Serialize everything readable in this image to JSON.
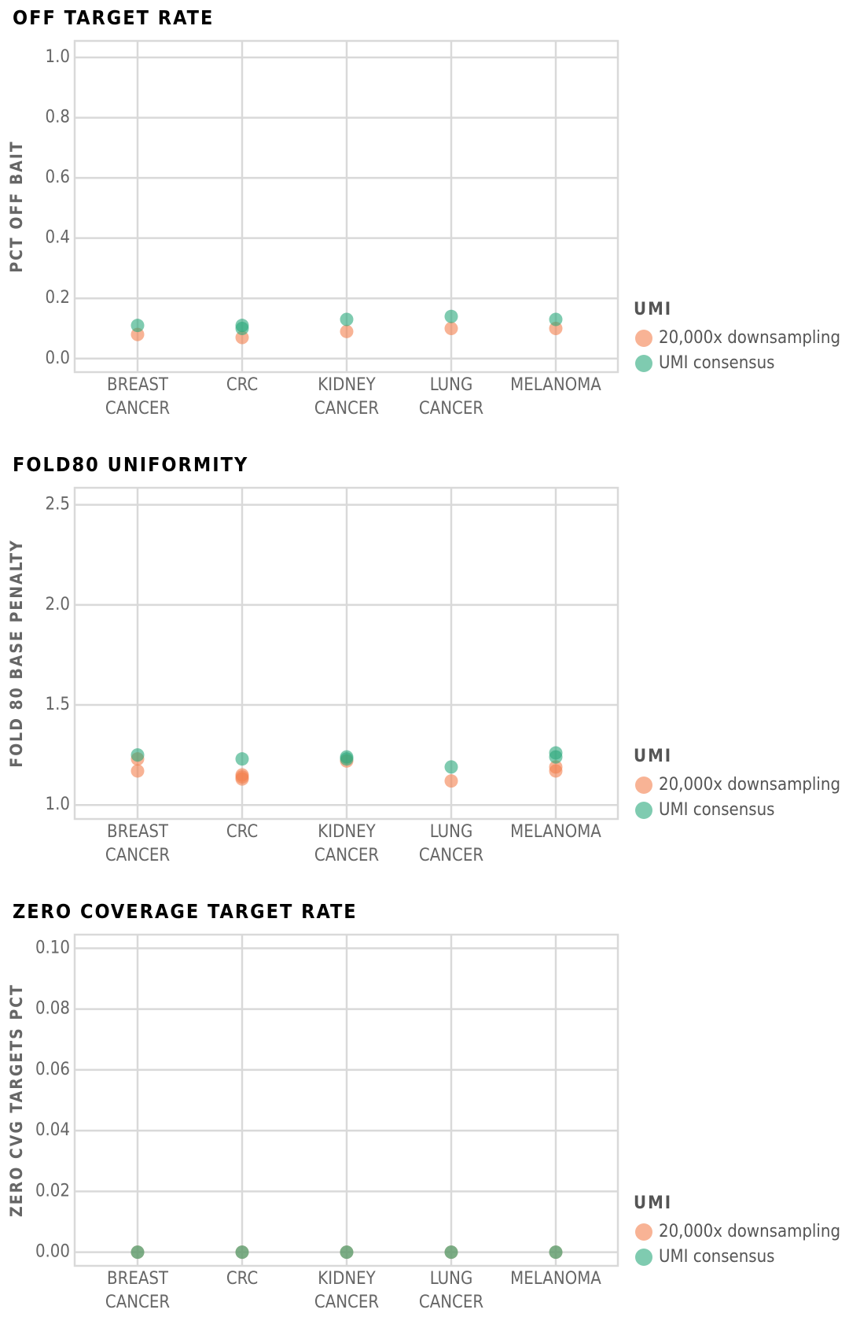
{
  "chart_data": [
    {
      "type": "scatter",
      "title": "OFF TARGET RATE",
      "ylabel": "PCT OFF BAIT",
      "categories": [
        "BREAST CANCER",
        "CRC",
        "KIDNEY CANCER",
        "LUNG CANCER",
        "MELANOMA"
      ],
      "legend_title": "UMI",
      "grid": true,
      "series": [
        {
          "name": "20,000x downsampling",
          "color": "#f4804f",
          "x": [
            "BREAST CANCER",
            "CRC",
            "KIDNEY CANCER",
            "LUNG CANCER",
            "MELANOMA"
          ],
          "values": [
            0.08,
            0.07,
            0.09,
            0.1,
            0.1
          ]
        },
        {
          "name": "UMI consensus",
          "color": "#2aa87c",
          "x": [
            "BREAST CANCER",
            "CRC",
            "CRC",
            "KIDNEY CANCER",
            "LUNG CANCER",
            "MELANOMA"
          ],
          "values": [
            0.11,
            0.11,
            0.1,
            0.13,
            0.14,
            0.13
          ]
        }
      ],
      "ylim": [
        -0.045,
        1.055
      ],
      "yticks": [
        {
          "value": 0,
          "label": "0.0"
        },
        0.2,
        0.4,
        0.6,
        0.8,
        {
          "value": 1,
          "label": "1.0"
        }
      ]
    },
    {
      "type": "scatter",
      "title": "FOLD80 UNIFORMITY",
      "ylabel": "FOLD 80 BASE PENALTY",
      "categories": [
        "BREAST CANCER",
        "CRC",
        "KIDNEY CANCER",
        "LUNG CANCER",
        "MELANOMA"
      ],
      "legend_title": "UMI",
      "grid": true,
      "series": [
        {
          "name": "20,000x downsampling",
          "color": "#f4804f",
          "x": [
            "BREAST CANCER",
            "BREAST CANCER",
            "CRC",
            "CRC",
            "CRC",
            "KIDNEY CANCER",
            "LUNG CANCER",
            "MELANOMA",
            "MELANOMA"
          ],
          "values": [
            1.17,
            1.23,
            1.13,
            1.15,
            1.14,
            1.22,
            1.12,
            1.17,
            1.19
          ]
        },
        {
          "name": "UMI consensus",
          "color": "#2aa87c",
          "x": [
            "BREAST CANCER",
            "CRC",
            "KIDNEY CANCER",
            "KIDNEY CANCER",
            "LUNG CANCER",
            "MELANOMA",
            "MELANOMA"
          ],
          "values": [
            1.25,
            1.23,
            1.24,
            1.23,
            1.19,
            1.26,
            1.24
          ]
        }
      ],
      "ylim": [
        0.93,
        2.585
      ],
      "yticks": [
        {
          "value": 1,
          "label": "1.0"
        },
        1.5,
        {
          "value": 2,
          "label": "2.0"
        },
        2.5
      ]
    },
    {
      "type": "scatter",
      "title": "ZERO COVERAGE TARGET RATE",
      "ylabel": "ZERO CVG TARGETS PCT",
      "categories": [
        "BREAST CANCER",
        "CRC",
        "KIDNEY CANCER",
        "LUNG CANCER",
        "MELANOMA"
      ],
      "legend_title": "UMI",
      "grid": true,
      "series": [
        {
          "name": "20,000x downsampling",
          "color": "#f4804f",
          "x": [
            "BREAST CANCER",
            "CRC",
            "KIDNEY CANCER",
            "LUNG CANCER",
            "MELANOMA"
          ],
          "values": [
            0,
            0,
            0,
            0,
            0
          ]
        },
        {
          "name": "UMI consensus",
          "color": "#2aa87c",
          "x": [
            "BREAST CANCER",
            "CRC",
            "KIDNEY CANCER",
            "LUNG CANCER",
            "MELANOMA"
          ],
          "values": [
            0,
            0,
            0,
            0,
            0
          ]
        }
      ],
      "ylim": [
        -0.0045,
        0.1045
      ],
      "yticks": [
        {
          "value": 0,
          "label": "0.00"
        },
        0.02,
        0.04,
        0.06,
        0.08,
        {
          "value": 0.1,
          "label": "0.10"
        }
      ]
    }
  ]
}
